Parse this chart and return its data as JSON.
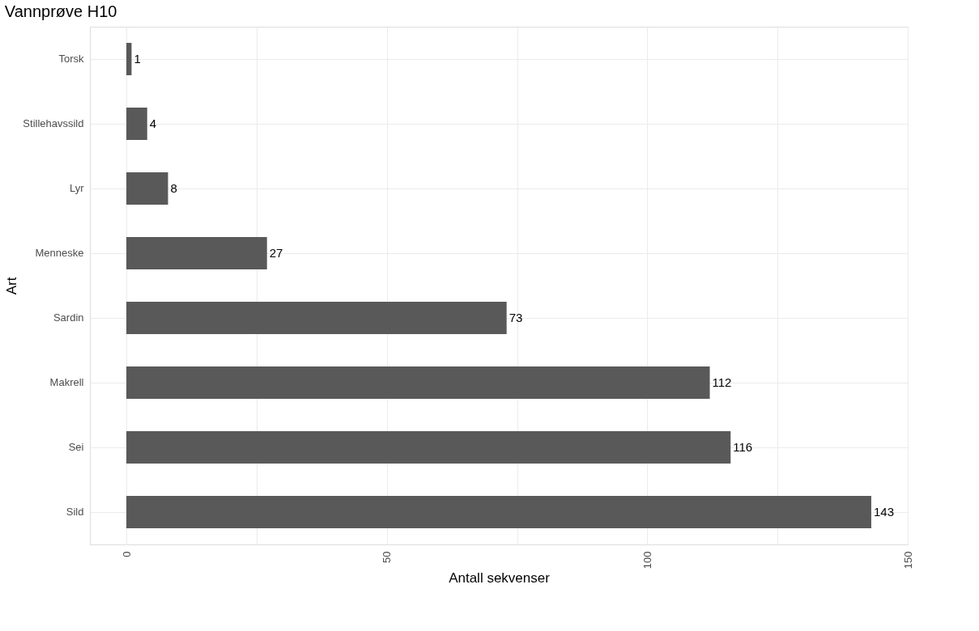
{
  "chart_data": {
    "type": "bar",
    "orientation": "horizontal",
    "title": "Vannprøve H10",
    "xlabel": "Antall sekvenser",
    "ylabel": "Art",
    "categories": [
      "Torsk",
      "Stillehavssild",
      "Lyr",
      "Menneske",
      "Sardin",
      "Makrell",
      "Sei",
      "Sild"
    ],
    "values": [
      1,
      4,
      8,
      27,
      73,
      112,
      116,
      143
    ],
    "color": "#595959",
    "xlim": [
      -7,
      150
    ],
    "xticks": [
      0,
      {
        "value": 25,
        "label": null
      },
      50,
      {
        "value": 75,
        "label": null
      },
      100,
      {
        "value": 125,
        "label": null
      },
      150
    ],
    "grid": true,
    "data_labels": true
  }
}
